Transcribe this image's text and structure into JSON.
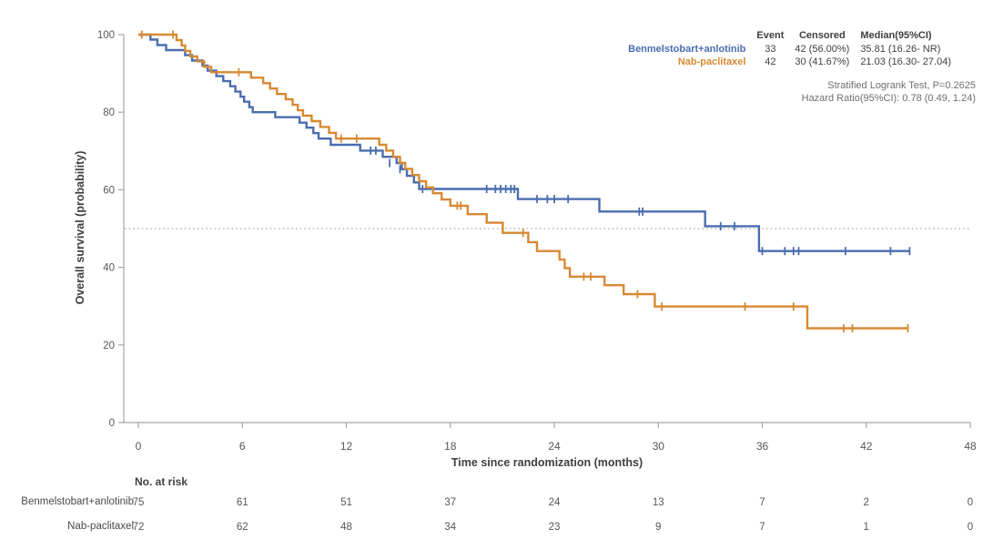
{
  "chart_data": {
    "type": "line",
    "subtype": "kaplan-meier-step",
    "xlabel": "Time since randomization (months)",
    "ylabel": "Overall survival (probability)",
    "xlim": [
      0,
      48
    ],
    "ylim": [
      0,
      100
    ],
    "xticks": [
      0,
      6,
      12,
      18,
      24,
      30,
      36,
      42,
      48
    ],
    "yticks": [
      0,
      20,
      40,
      60,
      80,
      100
    ],
    "grid": "off",
    "reference_line_y": 50,
    "series": [
      {
        "name": "Benmelstobart+anlotinib",
        "color": "#4A6DAF",
        "steps": [
          [
            0,
            100
          ],
          [
            0.7,
            98.7
          ],
          [
            1.1,
            97.3
          ],
          [
            1.6,
            96
          ],
          [
            2.7,
            94.7
          ],
          [
            3.1,
            93.3
          ],
          [
            3.7,
            92
          ],
          [
            4,
            90.7
          ],
          [
            4.5,
            89.3
          ],
          [
            4.9,
            88
          ],
          [
            5.3,
            86.7
          ],
          [
            5.6,
            85.3
          ],
          [
            5.9,
            84
          ],
          [
            6.1,
            82.7
          ],
          [
            6.4,
            81.3
          ],
          [
            6.6,
            80
          ],
          [
            7.9,
            78.7
          ],
          [
            9.3,
            77.3
          ],
          [
            9.7,
            76
          ],
          [
            10.1,
            74.6
          ],
          [
            10.4,
            73.2
          ],
          [
            11.1,
            71.6
          ],
          [
            12.8,
            70.1
          ],
          [
            14.1,
            68.5
          ],
          [
            14.9,
            66.9
          ],
          [
            15.2,
            65.3
          ],
          [
            15.5,
            63.6
          ],
          [
            15.9,
            61.9
          ],
          [
            16.2,
            60.2
          ],
          [
            21.9,
            57.6
          ],
          [
            26.6,
            54.4
          ],
          [
            32.7,
            50.6
          ],
          [
            35.81,
            44.2
          ]
        ],
        "end_time": 44.5,
        "censors": [
          [
            13.4,
            70.1
          ],
          [
            13.7,
            70.1
          ],
          [
            14.5,
            66.9
          ],
          [
            15.1,
            65.3
          ],
          [
            16.4,
            60.2
          ],
          [
            20.1,
            60.2
          ],
          [
            20.6,
            60.2
          ],
          [
            20.9,
            60.2
          ],
          [
            21.2,
            60.2
          ],
          [
            21.5,
            60.2
          ],
          [
            21.7,
            60.2
          ],
          [
            23,
            57.6
          ],
          [
            23.6,
            57.6
          ],
          [
            24,
            57.6
          ],
          [
            24.8,
            57.6
          ],
          [
            28.9,
            54.4
          ],
          [
            29.1,
            54.4
          ],
          [
            33.6,
            50.6
          ],
          [
            34.4,
            50.6
          ],
          [
            36,
            44.2
          ],
          [
            37.3,
            44.2
          ],
          [
            37.8,
            44.2
          ],
          [
            38.1,
            44.2
          ],
          [
            40.8,
            44.2
          ],
          [
            43.4,
            44.2
          ],
          [
            44.5,
            44.2
          ]
        ]
      },
      {
        "name": "Nab-paclitaxel",
        "color": "#D88932",
        "steps": [
          [
            0,
            100
          ],
          [
            2.2,
            98.6
          ],
          [
            2.5,
            97.2
          ],
          [
            2.7,
            95.8
          ],
          [
            3,
            94.4
          ],
          [
            3.4,
            93.1
          ],
          [
            3.8,
            91.7
          ],
          [
            4.2,
            90.3
          ],
          [
            6.5,
            88.9
          ],
          [
            7.2,
            87.5
          ],
          [
            7.6,
            86.1
          ],
          [
            8,
            84.7
          ],
          [
            8.5,
            83.3
          ],
          [
            8.9,
            81.9
          ],
          [
            9.2,
            80.5
          ],
          [
            9.5,
            79.1
          ],
          [
            10,
            77.7
          ],
          [
            10.5,
            76.2
          ],
          [
            11,
            74.7
          ],
          [
            11.4,
            73.2
          ],
          [
            13.9,
            71.6
          ],
          [
            14.3,
            70.1
          ],
          [
            14.7,
            68.5
          ],
          [
            15.1,
            66.9
          ],
          [
            15.4,
            65.4
          ],
          [
            15.8,
            63.8
          ],
          [
            16.2,
            62.2
          ],
          [
            16.6,
            60.6
          ],
          [
            17,
            59.1
          ],
          [
            17.5,
            57.5
          ],
          [
            18,
            55.9
          ],
          [
            19,
            53.7
          ],
          [
            20.1,
            51.5
          ],
          [
            21.03,
            48.9
          ],
          [
            22.5,
            46.5
          ],
          [
            23,
            44.2
          ],
          [
            24.3,
            42
          ],
          [
            24.6,
            39.8
          ],
          [
            24.9,
            37.6
          ],
          [
            26.9,
            35.4
          ],
          [
            28,
            33.1
          ],
          [
            29.8,
            29.9
          ],
          [
            38.6,
            24.3
          ]
        ],
        "end_time": 44.4,
        "censors": [
          [
            0.2,
            100
          ],
          [
            2,
            100
          ],
          [
            5.8,
            90.3
          ],
          [
            11.7,
            73.2
          ],
          [
            12.6,
            73.2
          ],
          [
            18.4,
            55.9
          ],
          [
            18.6,
            55.9
          ],
          [
            22.2,
            48.9
          ],
          [
            25.7,
            37.6
          ],
          [
            26.1,
            37.6
          ],
          [
            28.8,
            33.1
          ],
          [
            30.2,
            29.9
          ],
          [
            35,
            29.9
          ],
          [
            37.8,
            29.9
          ],
          [
            40.7,
            24.3
          ],
          [
            41.2,
            24.3
          ],
          [
            44.4,
            24.3
          ]
        ]
      }
    ],
    "risk_table": {
      "title": "No. at risk",
      "times": [
        0,
        6,
        12,
        18,
        24,
        30,
        36,
        42,
        48
      ],
      "rows": [
        {
          "label": "Benmelstobart+anlotinib",
          "values": [
            "75",
            "61",
            "51",
            "37",
            "24",
            "13",
            "7",
            "2",
            "0"
          ]
        },
        {
          "label": "Nab-paclitaxel",
          "values": [
            "72",
            "62",
            "48",
            "34",
            "23",
            "9",
            "7",
            "1",
            "0"
          ]
        }
      ]
    }
  },
  "legend": {
    "headers": {
      "event": "Event",
      "censored": "Censored",
      "median": "Median(95%CI)"
    },
    "rows": [
      {
        "label": "Benmelstobart+anlotinib",
        "event": "33",
        "censored": "42 (56.00%)",
        "median": "35.81 (16.26- NR)",
        "color": "#4A6DAF"
      },
      {
        "label": "Nab-paclitaxel",
        "event": "42",
        "censored": "30 (41.67%)",
        "median": "21.03 (16.30- 27.04)",
        "color": "#D88932"
      }
    ],
    "stats": [
      "Stratified Logrank Test, P=0.2625",
      "Hazard Ratio(95%CI): 0.78 (0.49, 1.24)"
    ]
  },
  "style": {
    "axis_color": "#a6a6a6",
    "tick_text_color": "#565656",
    "risk_number_color": "#565656",
    "reference_line_color": "#8c8c8c"
  }
}
